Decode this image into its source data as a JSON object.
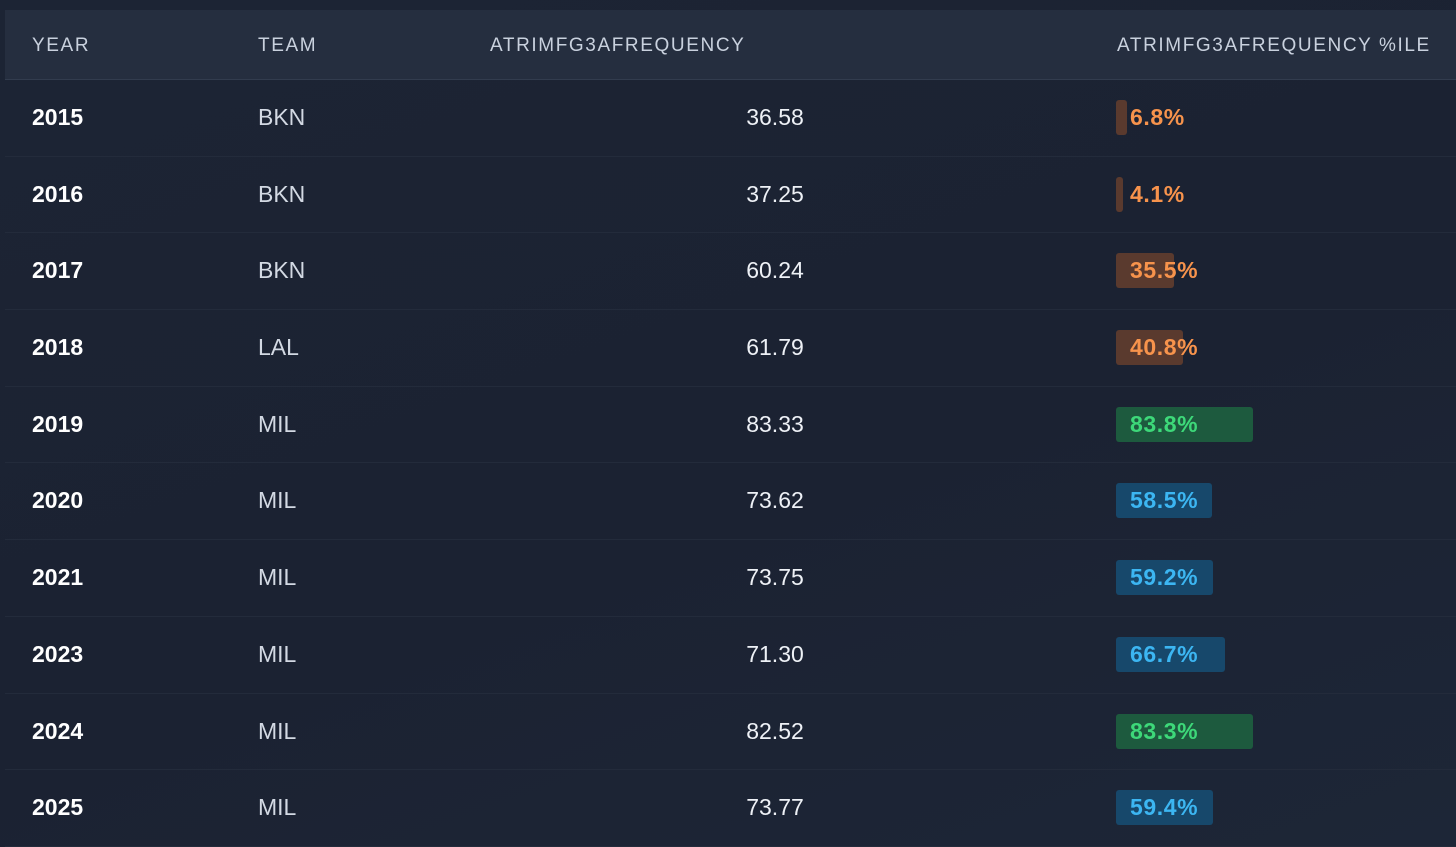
{
  "table": {
    "headers": {
      "year": "YEAR",
      "team": "TEAM",
      "metric": "ATRIMFG3AFREQUENCY",
      "percentile": "ATRIMFG3AFREQUENCY %ILE"
    },
    "rows": [
      {
        "year": "2015",
        "team": "BKN",
        "value": "36.58",
        "pct_label": "6.8%",
        "pct": 6.8,
        "tier": "low"
      },
      {
        "year": "2016",
        "team": "BKN",
        "value": "37.25",
        "pct_label": "4.1%",
        "pct": 4.1,
        "tier": "low"
      },
      {
        "year": "2017",
        "team": "BKN",
        "value": "60.24",
        "pct_label": "35.5%",
        "pct": 35.5,
        "tier": "low"
      },
      {
        "year": "2018",
        "team": "LAL",
        "value": "61.79",
        "pct_label": "40.8%",
        "pct": 40.8,
        "tier": "low"
      },
      {
        "year": "2019",
        "team": "MIL",
        "value": "83.33",
        "pct_label": "83.8%",
        "pct": 83.8,
        "tier": "high"
      },
      {
        "year": "2020",
        "team": "MIL",
        "value": "73.62",
        "pct_label": "58.5%",
        "pct": 58.5,
        "tier": "mid"
      },
      {
        "year": "2021",
        "team": "MIL",
        "value": "73.75",
        "pct_label": "59.2%",
        "pct": 59.2,
        "tier": "mid"
      },
      {
        "year": "2023",
        "team": "MIL",
        "value": "71.30",
        "pct_label": "66.7%",
        "pct": 66.7,
        "tier": "mid"
      },
      {
        "year": "2024",
        "team": "MIL",
        "value": "82.52",
        "pct_label": "83.3%",
        "pct": 83.3,
        "tier": "high"
      },
      {
        "year": "2025",
        "team": "MIL",
        "value": "73.77",
        "pct_label": "59.4%",
        "pct": 59.4,
        "tier": "mid"
      }
    ]
  },
  "colors": {
    "low": {
      "text": "#f7934c",
      "bar": "#5a3a2e"
    },
    "mid": {
      "text": "#3cb6f2",
      "bar": "#17486b"
    },
    "high": {
      "text": "#3dd879",
      "bar": "#1d5a3e"
    }
  }
}
